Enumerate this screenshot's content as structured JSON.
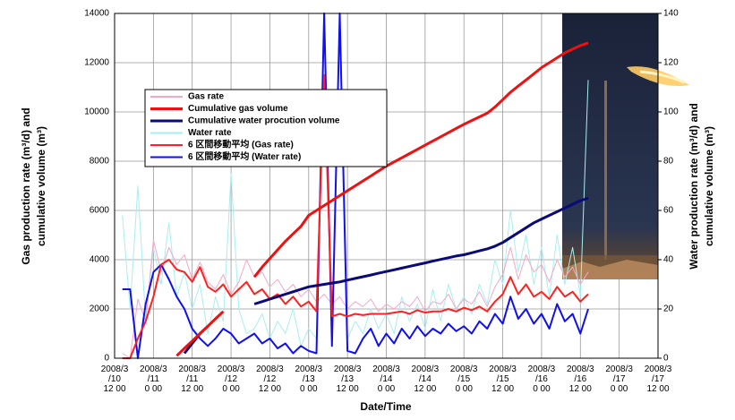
{
  "chart_data": {
    "type": "line",
    "xlabel": "Date/Time",
    "ylabel": [
      "Gas production rate (m³/d)  and",
      "cumulative volume (m³)"
    ],
    "y2label": [
      "Water production rate (m³/d) and",
      "cumulative  volume (m³)"
    ],
    "xlim": [
      10.5,
      17.5
    ],
    "xticks": [
      {
        "value": 10.5,
        "label": "2008/3/10 12 00"
      },
      {
        "value": 11,
        "label": "2008/3/11 0 00"
      },
      {
        "value": 11.5,
        "label": "2008/3/11 12 00"
      },
      {
        "value": 12,
        "label": "2008/3/12 0 00"
      },
      {
        "value": 12.5,
        "label": "2008/3/12 12 00"
      },
      {
        "value": 13,
        "label": "2008/3/13 0 00"
      },
      {
        "value": 13.5,
        "label": "2008/3/13 12 00"
      },
      {
        "value": 14,
        "label": "2008/3/14 0 00"
      },
      {
        "value": 14.5,
        "label": "2008/3/14 12 00"
      },
      {
        "value": 15,
        "label": "2008/3/15 0 00"
      },
      {
        "value": 15.5,
        "label": "2008/3/15 12 00"
      },
      {
        "value": 16,
        "label": "2008/3/16 0 00"
      },
      {
        "value": 16.5,
        "label": "2008/3/16 12 00"
      },
      {
        "value": 17,
        "label": "2008/3/17 0 00"
      },
      {
        "value": 17.5,
        "label": "2008/3/17 12 00"
      }
    ],
    "ylim": [
      0,
      14000
    ],
    "yticks": [
      0,
      2000,
      4000,
      6000,
      8000,
      10000,
      12000,
      14000
    ],
    "y2lim": [
      0,
      140
    ],
    "y2ticks": [
      0,
      20,
      40,
      60,
      80,
      100,
      120,
      140
    ],
    "grid": true,
    "legend": "upper left",
    "x": [
      10.6,
      10.7,
      10.8,
      10.9,
      11.0,
      11.1,
      11.2,
      11.3,
      11.4,
      11.5,
      11.6,
      11.7,
      11.8,
      11.9,
      12.0,
      12.1,
      12.2,
      12.3,
      12.4,
      12.5,
      12.6,
      12.7,
      12.8,
      12.9,
      13.0,
      13.1,
      13.2,
      13.3,
      13.4,
      13.5,
      13.6,
      13.7,
      13.8,
      13.9,
      14.0,
      14.1,
      14.2,
      14.3,
      14.4,
      14.5,
      14.6,
      14.7,
      14.8,
      14.9,
      15.0,
      15.1,
      15.2,
      15.3,
      15.4,
      15.5,
      15.6,
      15.7,
      15.8,
      15.9,
      16.0,
      16.1,
      16.2,
      16.3,
      16.4,
      16.5,
      16.6
    ],
    "series": [
      {
        "name": "Gas rate",
        "color": "#f4a6c8",
        "line_width": 1,
        "values": [
          200,
          0,
          2400,
          1500,
          4800,
          3500,
          4500,
          3800,
          4200,
          3200,
          3900,
          3100,
          2800,
          3400,
          2600,
          3100,
          4000,
          3300,
          3500,
          2900,
          3200,
          2700,
          3000,
          2500,
          2800,
          2300,
          2600,
          2200,
          2500,
          2000,
          2300,
          2100,
          2400,
          1900,
          2200,
          2000,
          2300,
          2100,
          2500,
          1900,
          2300,
          2200,
          2600,
          2000,
          2400,
          2200,
          2700,
          2100,
          2900,
          3400,
          4500,
          3200,
          4200,
          3500,
          3800,
          3100,
          4000,
          3300,
          3700,
          3000,
          3500
        ]
      },
      {
        "name": "Cumulative gas volume",
        "color": "#ee1111",
        "line_width": 3,
        "values": [
          null,
          null,
          null,
          null,
          null,
          null,
          null,
          100,
          400,
          700,
          1000,
          1300,
          1600,
          1900,
          null,
          null,
          null,
          3300,
          3700,
          4050,
          4400,
          4750,
          5050,
          5350,
          5800,
          6000,
          6200,
          6400,
          6600,
          6800,
          7000,
          7200,
          7400,
          7600,
          7800,
          7970,
          8140,
          8310,
          8480,
          8650,
          8820,
          8990,
          9160,
          9330,
          9500,
          9650,
          9800,
          9950,
          10200,
          10500,
          10800,
          11050,
          11300,
          11550,
          11800,
          12000,
          12200,
          12400,
          12550,
          12700,
          12800
        ]
      },
      {
        "name": "Cumulative water procution volume",
        "color": "#0a0a7a",
        "line_width": 3,
        "axis": "y2",
        "values": [
          null,
          null,
          null,
          null,
          null,
          null,
          null,
          null,
          2,
          6,
          10,
          13,
          null,
          null,
          null,
          null,
          null,
          22,
          23,
          24,
          25,
          26,
          27,
          28,
          29,
          29.5,
          30,
          30.5,
          31,
          31.7,
          32.4,
          33.1,
          33.8,
          34.5,
          35.2,
          35.9,
          36.6,
          37.3,
          38,
          38.7,
          39.4,
          40.1,
          40.8,
          41.5,
          42,
          42.8,
          43.6,
          44.4,
          45.5,
          47,
          49,
          51,
          53,
          55,
          56.5,
          58,
          59.5,
          61,
          62.5,
          64,
          65
        ]
      },
      {
        "name": "Water rate",
        "color": "#a8eef0",
        "line_width": 1,
        "axis": "y2",
        "values": [
          58,
          20,
          70,
          15,
          45,
          30,
          55,
          25,
          35,
          20,
          30,
          10,
          25,
          15,
          75,
          20,
          10,
          12,
          18,
          8,
          15,
          10,
          20,
          5,
          12,
          8,
          140,
          10,
          140,
          8,
          15,
          10,
          20,
          12,
          18,
          10,
          25,
          15,
          22,
          12,
          28,
          15,
          30,
          20,
          25,
          18,
          30,
          22,
          40,
          30,
          60,
          35,
          50,
          30,
          45,
          25,
          50,
          30,
          45,
          25,
          113
        ]
      },
      {
        "name": "6 区間移動平均 (Gas rate)",
        "color": "#ff2020",
        "line_width": 2,
        "values": [
          0,
          0,
          800,
          1500,
          2500,
          3800,
          4000,
          3600,
          3500,
          3100,
          3700,
          2900,
          2700,
          3000,
          2500,
          2800,
          3100,
          2600,
          2800,
          2400,
          2600,
          2200,
          2500,
          2100,
          2300,
          1900,
          11500,
          1700,
          1800,
          1700,
          1800,
          1750,
          1800,
          1800,
          1800,
          1850,
          1900,
          1800,
          1950,
          1850,
          1900,
          1900,
          2000,
          1900,
          2050,
          1950,
          2100,
          1900,
          2300,
          2600,
          3300,
          2600,
          3000,
          2500,
          2700,
          2400,
          2900,
          2500,
          2700,
          2300,
          2600
        ]
      },
      {
        "name": "6 区間移動平均 (Water rate)",
        "color": "#1010ee",
        "line_width": 2,
        "axis": "y2",
        "values": [
          28,
          28,
          0,
          22,
          35,
          38,
          32,
          25,
          20,
          12,
          8,
          5,
          8,
          12,
          10,
          6,
          8,
          10,
          6,
          8,
          4,
          6,
          2,
          5,
          3,
          2,
          140,
          5,
          140,
          3,
          2,
          8,
          12,
          5,
          10,
          6,
          12,
          8,
          13,
          9,
          12,
          10,
          14,
          11,
          13,
          10,
          15,
          12,
          18,
          14,
          25,
          16,
          20,
          14,
          18,
          12,
          22,
          15,
          18,
          10,
          20
        ]
      }
    ]
  }
}
